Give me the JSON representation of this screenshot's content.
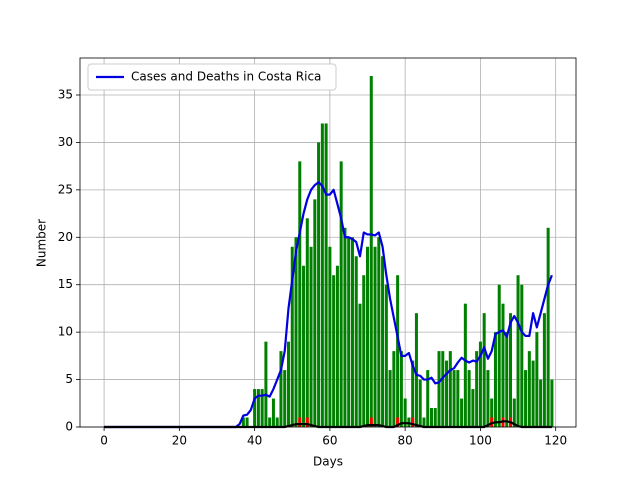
{
  "chart_data": {
    "type": "bar",
    "xlabel": "Days",
    "ylabel": "Number",
    "xlim": [
      -6.4,
      125.4
    ],
    "ylim": [
      0,
      38.9
    ],
    "xticks": [
      0,
      20,
      40,
      60,
      80,
      100,
      120
    ],
    "yticks": [
      0,
      5,
      10,
      15,
      20,
      25,
      30,
      35
    ],
    "grid": true,
    "legend": "upper left",
    "x": [
      0,
      1,
      2,
      3,
      4,
      5,
      6,
      7,
      8,
      9,
      10,
      11,
      12,
      13,
      14,
      15,
      16,
      17,
      18,
      19,
      20,
      21,
      22,
      23,
      24,
      25,
      26,
      27,
      28,
      29,
      30,
      31,
      32,
      33,
      34,
      35,
      36,
      37,
      38,
      39,
      40,
      41,
      42,
      43,
      44,
      45,
      46,
      47,
      48,
      49,
      50,
      51,
      52,
      53,
      54,
      55,
      56,
      57,
      58,
      59,
      60,
      61,
      62,
      63,
      64,
      65,
      66,
      67,
      68,
      69,
      70,
      71,
      72,
      73,
      74,
      75,
      76,
      77,
      78,
      79,
      80,
      81,
      82,
      83,
      84,
      85,
      86,
      87,
      88,
      89,
      90,
      91,
      92,
      93,
      94,
      95,
      96,
      97,
      98,
      99,
      100,
      101,
      102,
      103,
      104,
      105,
      106,
      107,
      108,
      109,
      110,
      111,
      112,
      113,
      114,
      115,
      116,
      117,
      118,
      119
    ],
    "series": [
      {
        "type": "bar",
        "color": "green",
        "values": [
          0,
          0,
          0,
          0,
          0,
          0,
          0,
          0,
          0,
          0,
          0,
          0,
          0,
          0,
          0,
          0,
          0,
          0,
          0,
          0,
          0,
          0,
          0,
          0,
          0,
          0,
          0,
          0,
          0,
          0,
          0,
          0,
          0,
          0,
          0,
          0,
          0,
          1,
          1,
          0,
          4,
          4,
          4,
          9,
          1,
          3,
          1,
          8,
          6,
          9,
          19,
          20,
          28,
          17,
          22,
          19,
          24,
          30,
          32,
          32,
          19,
          16,
          17,
          28,
          21,
          20,
          20,
          18,
          13,
          16,
          19,
          37,
          19,
          20,
          18,
          15,
          6,
          8,
          16,
          8,
          3,
          1,
          7,
          12,
          5,
          1,
          6,
          2,
          2,
          8,
          8,
          7,
          8,
          6,
          6,
          3,
          13,
          6,
          4,
          8,
          9,
          12,
          6,
          3,
          10,
          15,
          13,
          10,
          12,
          3,
          16,
          15,
          6,
          8,
          7,
          10,
          5,
          12,
          21,
          5
        ]
      },
      {
        "type": "bar",
        "color": "red",
        "values": [
          0,
          0,
          0,
          0,
          0,
          0,
          0,
          0,
          0,
          0,
          0,
          0,
          0,
          0,
          0,
          0,
          0,
          0,
          0,
          0,
          0,
          0,
          0,
          0,
          0,
          0,
          0,
          0,
          0,
          0,
          0,
          0,
          0,
          0,
          0,
          0,
          0,
          0,
          0,
          0,
          0,
          0,
          0,
          0,
          0,
          0,
          0,
          0,
          0,
          0,
          0,
          0,
          1,
          0,
          1,
          0,
          0,
          0,
          0,
          0,
          0,
          0,
          0,
          0,
          0,
          0,
          0,
          0,
          0,
          0,
          0,
          1,
          0,
          0,
          0,
          0,
          0,
          0,
          1,
          0,
          0,
          0,
          1,
          0,
          0,
          0,
          0,
          0,
          0,
          0,
          0,
          0,
          0,
          0,
          0,
          0,
          0,
          0,
          0,
          0,
          0,
          0,
          0,
          1,
          0,
          0,
          1,
          0,
          1,
          0,
          0,
          0,
          0,
          0,
          0,
          0,
          0,
          0,
          0,
          0
        ]
      },
      {
        "type": "line",
        "name": "Cases and Deaths in Costa Rica",
        "color": "#0000e0",
        "values": [
          0,
          0,
          0,
          0,
          0,
          0,
          0,
          0,
          0,
          0,
          0,
          0,
          0,
          0,
          0,
          0,
          0,
          0,
          0,
          0,
          0,
          0,
          0,
          0,
          0,
          0,
          0,
          0,
          0,
          0,
          0,
          0,
          0,
          0,
          0,
          0,
          0.3,
          1.2,
          1.3,
          1.8,
          3,
          3.3,
          3.3,
          3.4,
          3.2,
          4,
          5,
          6,
          8,
          12.5,
          15.5,
          18.5,
          20.5,
          22.5,
          24,
          25,
          25.5,
          25.8,
          25.4,
          24.5,
          24.5,
          25,
          23.5,
          22,
          20,
          20,
          19.8,
          19.5,
          18,
          20.5,
          20.3,
          20.3,
          20.2,
          20.5,
          19,
          16,
          13.5,
          11.5,
          9.5,
          7.5,
          7.5,
          7.8,
          6.5,
          5.5,
          5.4,
          5,
          5,
          5.2,
          4.6,
          4.7,
          5.2,
          5.6,
          6,
          6.2,
          6.8,
          7.3,
          7,
          6.8,
          7,
          6.9,
          7.5,
          8.4,
          7.2,
          8,
          9.8,
          10,
          10.2,
          9.5,
          11,
          11.7,
          11,
          10,
          9.6,
          9.6,
          12,
          10.5,
          12,
          13.5,
          15,
          16
        ]
      },
      {
        "type": "line",
        "color": "black",
        "values": [
          0,
          0,
          0,
          0,
          0,
          0,
          0,
          0,
          0,
          0,
          0,
          0,
          0,
          0,
          0,
          0,
          0,
          0,
          0,
          0,
          0,
          0,
          0,
          0,
          0,
          0,
          0,
          0,
          0,
          0,
          0,
          0,
          0,
          0,
          0,
          0,
          0,
          0,
          0,
          0,
          0,
          0,
          0,
          0,
          0,
          0,
          0,
          0,
          0,
          0.1,
          0.2,
          0.3,
          0.3,
          0.3,
          0.3,
          0.2,
          0.1,
          0,
          0,
          0,
          0,
          0,
          0,
          0,
          0,
          0,
          0,
          0,
          0,
          0.1,
          0.2,
          0.2,
          0.2,
          0.2,
          0.1,
          0,
          0,
          0,
          0.2,
          0.4,
          0.4,
          0.4,
          0.3,
          0.2,
          0.1,
          0,
          0,
          0,
          0,
          0,
          0,
          0,
          0,
          0,
          0,
          0,
          0,
          0,
          0,
          0,
          0,
          0,
          0.2,
          0.4,
          0.5,
          0.5,
          0.6,
          0.6,
          0.5,
          0.3,
          0.1,
          0,
          0,
          0,
          0,
          0,
          0,
          0,
          0,
          0
        ]
      }
    ]
  }
}
